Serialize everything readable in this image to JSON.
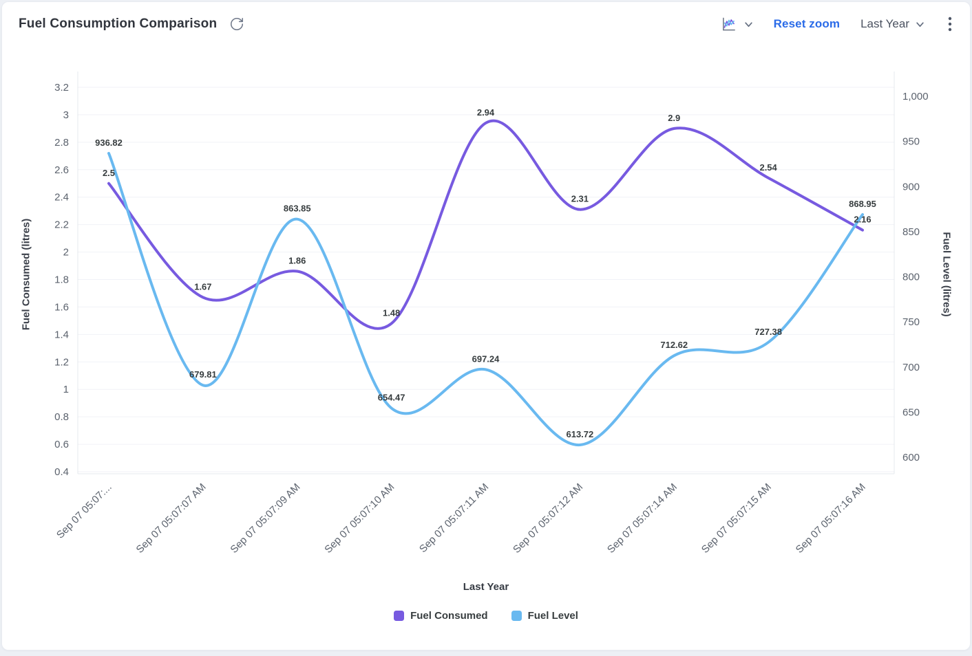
{
  "header": {
    "title": "Fuel Consumption Comparison",
    "toolbar": {
      "reset_zoom_label": "Reset zoom",
      "range_selector": "Last Year"
    }
  },
  "chart_data": {
    "type": "line",
    "curve": "smooth",
    "grid": true,
    "data_labels": true,
    "legend_position": "bottom",
    "title": "Fuel Consumption Comparison",
    "xlabel": "Last Year",
    "categories": [
      "Sep 07 05:07:...",
      "Sep 07 05:07:07 AM",
      "Sep 07 05:07:09 AM",
      "Sep 07 05:07:10 AM",
      "Sep 07 05:07:11 AM",
      "Sep 07 05:07:12 AM",
      "Sep 07 05:07:14 AM",
      "Sep 07 05:07:15 AM",
      "Sep 07 05:07:16 AM"
    ],
    "y_left": {
      "label": "Fuel Consumed (litres)",
      "min": 0.4,
      "max": 3.2,
      "ticks": [
        0.4,
        0.6,
        0.8,
        1,
        1.2,
        1.4,
        1.6,
        1.8,
        2,
        2.2,
        2.4,
        2.6,
        2.8,
        3,
        3.2
      ]
    },
    "y_right": {
      "label": "Fuel Level (litres)",
      "min": 600,
      "max": 1000,
      "ticks": [
        600,
        650,
        700,
        750,
        800,
        850,
        900,
        950,
        1000
      ]
    },
    "series": [
      {
        "name": "Fuel Consumed",
        "axis": "left",
        "color": "#775ae0",
        "values": [
          2.5,
          1.67,
          1.86,
          1.48,
          2.94,
          2.31,
          2.9,
          2.54,
          2.16
        ]
      },
      {
        "name": "Fuel Level",
        "axis": "right",
        "color": "#69b9f0",
        "values": [
          936.82,
          679.81,
          863.85,
          654.47,
          697.24,
          613.72,
          712.62,
          727.38,
          868.95
        ]
      }
    ]
  },
  "colors": {
    "series_purple": "#775ae0",
    "series_blue": "#69b9f0",
    "link_blue": "#2a6be8"
  }
}
